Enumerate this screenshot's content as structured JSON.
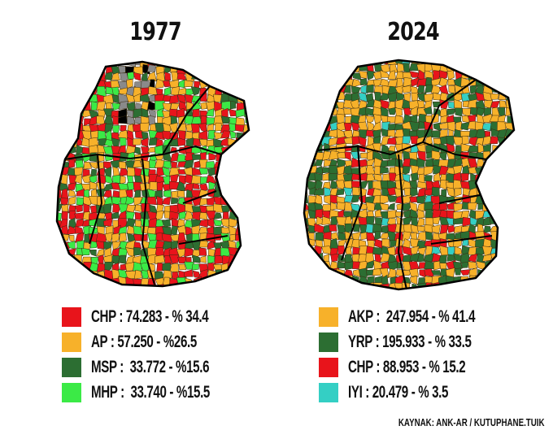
{
  "maps": [
    {
      "title": "1977",
      "legend": [
        {
          "party": "CHP",
          "label": "CHP : 74.283 - % 34.4",
          "color": "#e8141b",
          "votes": 74283,
          "percent": 34.4
        },
        {
          "party": "AP",
          "label": "AP : 57.250 - %26.5",
          "color": "#f7b12a",
          "votes": 57250,
          "percent": 26.5
        },
        {
          "party": "MSP",
          "label": "MSP :  33.772 - %15.6",
          "color": "#2c6e32",
          "votes": 33772,
          "percent": 15.6
        },
        {
          "party": "MHP",
          "label": "MHP :  33.740 - %15.5",
          "color": "#3bea46",
          "votes": 33740,
          "percent": 15.5
        }
      ],
      "no_data_color": "#8a8a8a"
    },
    {
      "title": "2024",
      "legend": [
        {
          "party": "AKP",
          "label": "AKP :  247.954 - % 41.4",
          "color": "#f7b12a",
          "votes": 247954,
          "percent": 41.4
        },
        {
          "party": "YRP",
          "label": "YRP : 195.933 - % 33.5",
          "color": "#2c6e32",
          "votes": 195933,
          "percent": 33.5
        },
        {
          "party": "CHP",
          "label": "CHP : 88.953 - % 15.2",
          "color": "#e8141b",
          "votes": 88953,
          "percent": 15.2
        },
        {
          "party": "IYI",
          "label": "IYI : 20.479 - % 3.5",
          "color": "#34cfc4",
          "votes": 20479,
          "percent": 3.5
        }
      ]
    }
  ],
  "source": "KAYNAK: ANK-AR / KUTUPHANE.TUIK"
}
